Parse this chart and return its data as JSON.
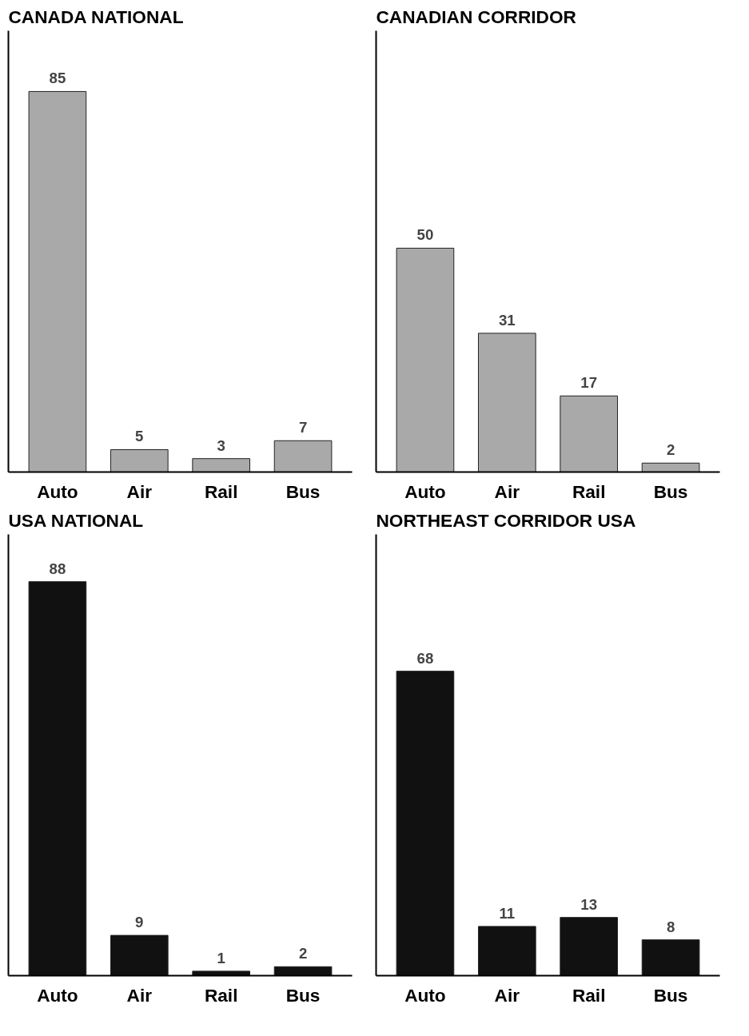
{
  "chart_data": [
    {
      "type": "bar",
      "title": "CANADA NATIONAL",
      "categories": [
        "Auto",
        "Air",
        "Rail",
        "Bus"
      ],
      "values": [
        85,
        5,
        3,
        7
      ],
      "color": "#a9a9a9",
      "data_labels": true,
      "tick_labels": "x",
      "grid": false
    },
    {
      "type": "bar",
      "title": "CANADIAN CORRIDOR",
      "categories": [
        "Auto",
        "Air",
        "Rail",
        "Bus"
      ],
      "values": [
        50,
        31,
        17,
        2
      ],
      "color": "#a9a9a9",
      "data_labels": true,
      "tick_labels": "x",
      "grid": false
    },
    {
      "type": "bar",
      "title": "USA NATIONAL",
      "categories": [
        "Auto",
        "Air",
        "Rail",
        "Bus"
      ],
      "values": [
        88,
        9,
        1,
        2
      ],
      "color": "#111111",
      "data_labels": true,
      "tick_labels": "x",
      "grid": false
    },
    {
      "type": "bar",
      "title": "NORTHEAST CORRIDOR USA",
      "categories": [
        "Auto",
        "Air",
        "Rail",
        "Bus"
      ],
      "values": [
        68,
        11,
        13,
        8
      ],
      "color": "#111111",
      "data_labels": true,
      "tick_labels": "x",
      "grid": false
    }
  ]
}
